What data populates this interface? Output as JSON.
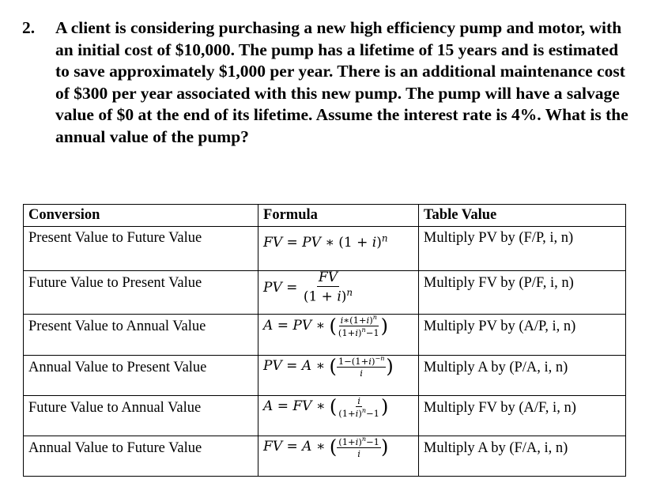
{
  "problem": {
    "number": "2.",
    "text": "A client is considering purchasing a new high efficiency pump and motor, with an initial cost of $10,000.  The pump has a lifetime of 15 years and is estimated to save approximately $1,000 per year.  There is an additional maintenance cost of $300 per year associated with this new pump.  The pump will have a salvage value of $0 at the end of its lifetime.  Assume the interest rate is 4%.  What is the annual value of the pump?"
  },
  "table": {
    "headers": [
      "Conversion",
      "Formula",
      "Table Value"
    ],
    "rows": [
      {
        "conversion": "Present Value to Future Value",
        "table_value": "Multiply PV by (F/P, i, n)"
      },
      {
        "conversion": "Future Value to Present Value",
        "table_value": "Multiply FV by (P/F, i, n)"
      },
      {
        "conversion": "Present Value to Annual Value",
        "table_value": "Multiply PV by (A/P, i, n)"
      },
      {
        "conversion": "Annual Value to Present Value",
        "table_value": "Multiply A by (P/A, i, n)"
      },
      {
        "conversion": "Future Value to Annual Value",
        "table_value": "Multiply FV by (A/F, i, n)"
      },
      {
        "conversion": "Annual Value to Future Value",
        "table_value": "Multiply A by (F/A, i, n)"
      }
    ]
  }
}
